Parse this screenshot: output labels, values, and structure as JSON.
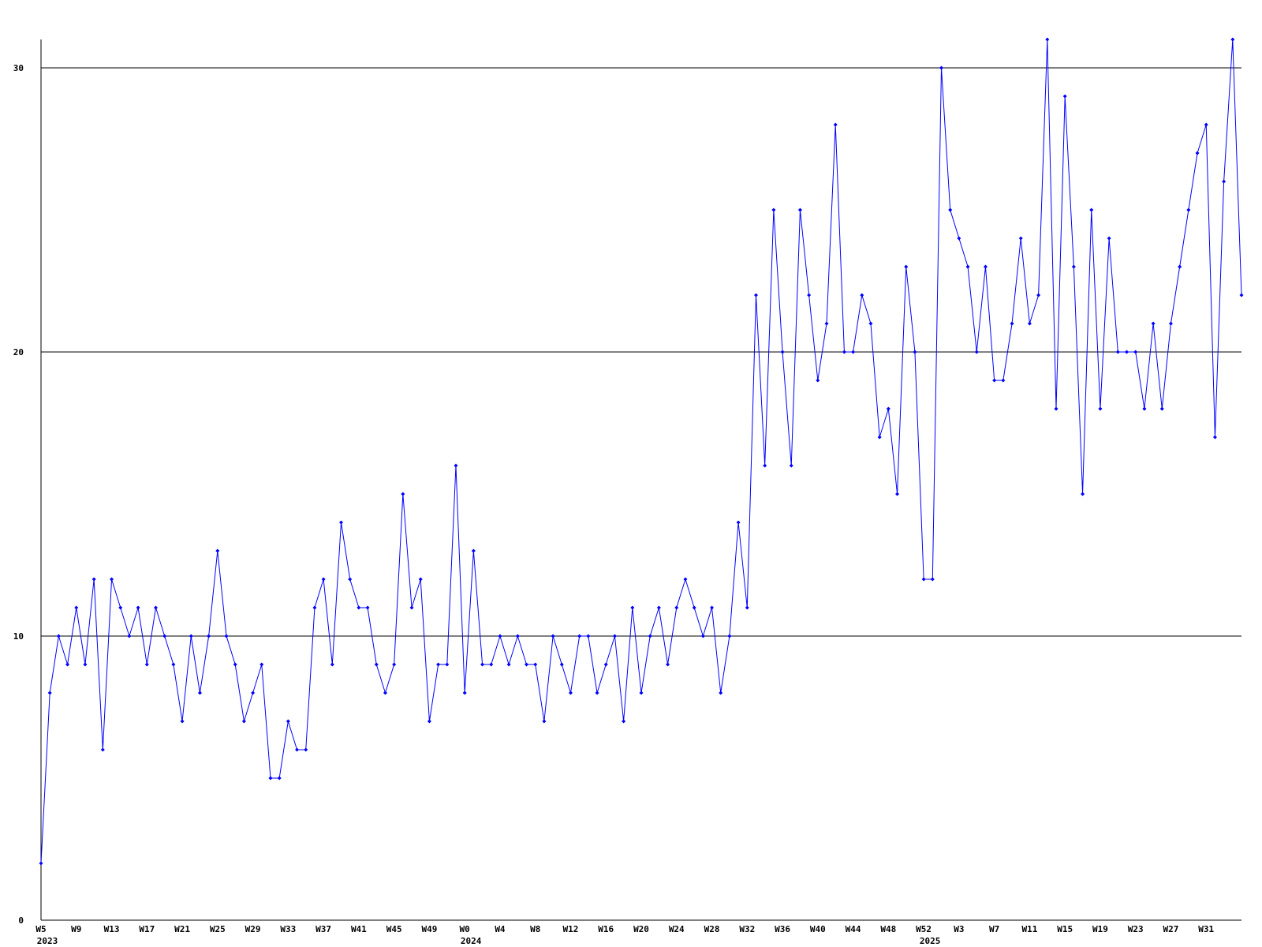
{
  "chart_data": {
    "type": "line",
    "categories": [
      "W5",
      null,
      null,
      null,
      "W9",
      null,
      null,
      null,
      "W13",
      null,
      null,
      null,
      "W17",
      null,
      null,
      null,
      "W21",
      null,
      null,
      null,
      "W25",
      null,
      null,
      null,
      "W29",
      null,
      null,
      null,
      "W33",
      null,
      null,
      null,
      "W37",
      null,
      null,
      null,
      "W41",
      null,
      null,
      null,
      "W45",
      null,
      null,
      null,
      "W49",
      null,
      null,
      null,
      "W0",
      null,
      null,
      null,
      "W4",
      null,
      null,
      null,
      "W8",
      null,
      null,
      null,
      "W12",
      null,
      null,
      null,
      "W16",
      null,
      null,
      null,
      "W20",
      null,
      null,
      null,
      "W24",
      null,
      null,
      null,
      "W28",
      null,
      null,
      null,
      "W32",
      null,
      null,
      null,
      "W36",
      null,
      null,
      null,
      "W40",
      null,
      null,
      null,
      "W44",
      null,
      null,
      null,
      "W48",
      null,
      null,
      null,
      "W52",
      null,
      null,
      null,
      "W3",
      null,
      null,
      null,
      "W7",
      null,
      null,
      null,
      "W11",
      null,
      null,
      null,
      "W15",
      null,
      null,
      null,
      "W19",
      null,
      null,
      null,
      "W23",
      null,
      null,
      null,
      "W27",
      null,
      null,
      null,
      "W31",
      null,
      null,
      null,
      null
    ],
    "category_years": [
      "2023",
      null,
      null,
      null,
      null,
      null,
      null,
      null,
      null,
      null,
      null,
      null,
      null,
      null,
      null,
      null,
      null,
      null,
      null,
      null,
      null,
      null,
      null,
      null,
      null,
      null,
      null,
      null,
      null,
      null,
      null,
      null,
      null,
      null,
      null,
      null,
      null,
      null,
      null,
      null,
      null,
      null,
      null,
      null,
      null,
      null,
      null,
      null,
      "2024",
      null,
      null,
      null,
      null,
      null,
      null,
      null,
      null,
      null,
      null,
      null,
      null,
      null,
      null,
      null,
      null,
      null,
      null,
      null,
      null,
      null,
      null,
      null,
      null,
      null,
      null,
      null,
      null,
      null,
      null,
      null,
      null,
      null,
      null,
      null,
      null,
      null,
      null,
      null,
      null,
      null,
      null,
      null,
      null,
      null,
      null,
      null,
      null,
      null,
      null,
      null,
      "2025",
      null,
      null,
      null,
      null,
      null,
      null,
      null,
      null,
      null,
      null,
      null,
      null,
      null,
      null,
      null,
      null,
      null,
      null,
      null,
      null,
      null,
      null,
      null,
      null,
      null,
      null,
      null,
      null,
      null,
      null,
      null,
      null,
      null,
      null,
      null,
      null
    ],
    "series": [
      {
        "color": "#0000ff",
        "values": [
          2,
          8,
          10,
          9,
          11,
          9,
          12,
          6,
          12,
          11,
          10,
          11,
          9,
          11,
          10,
          9,
          7,
          10,
          8,
          10,
          13,
          10,
          9,
          7,
          8,
          9,
          5,
          5,
          7,
          6,
          6,
          11,
          12,
          9,
          14,
          12,
          11,
          11,
          9,
          8,
          9,
          15,
          11,
          12,
          7,
          9,
          9,
          16,
          8,
          13,
          9,
          9,
          10,
          9,
          10,
          9,
          9,
          7,
          10,
          9,
          8,
          10,
          10,
          8,
          9,
          10,
          7,
          11,
          8,
          10,
          11,
          9,
          11,
          12,
          11,
          10,
          11,
          8,
          10,
          14,
          11,
          22,
          16,
          25,
          20,
          16,
          25,
          22,
          19,
          21,
          28,
          20,
          20,
          22,
          21,
          17,
          18,
          15,
          23,
          20,
          12,
          12,
          30,
          25,
          24,
          23,
          20,
          23,
          19,
          19,
          21,
          24,
          21,
          22,
          31,
          18,
          29,
          23,
          15,
          25,
          18,
          24,
          20,
          20,
          20,
          18,
          21,
          18,
          21,
          23,
          25,
          27,
          28,
          17,
          26,
          31,
          22
        ]
      }
    ],
    "ylim": [
      0,
      31
    ],
    "yticks": [
      0,
      10,
      20,
      30
    ],
    "grid": true
  }
}
